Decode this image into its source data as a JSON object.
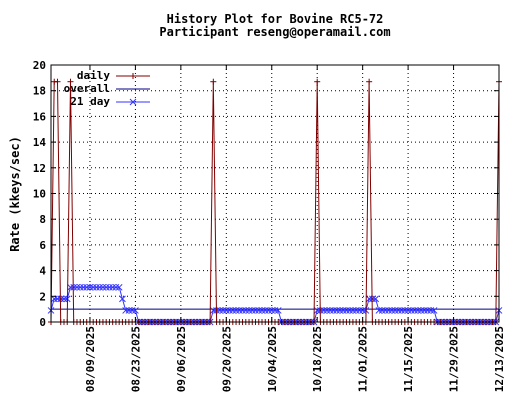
{
  "chart_data": {
    "type": "line",
    "title": "History Plot for Bovine RC5-72",
    "subtitle": "Participant reseng@operamail.com",
    "xlabel": "",
    "ylabel": "Rate (kkeys/sec)",
    "ylim": [
      0,
      20
    ],
    "yticks": [
      "0",
      "2",
      "4",
      "6",
      "8",
      "10",
      "12",
      "14",
      "16",
      "18",
      "20"
    ],
    "xlim": [
      "2025-07-28",
      "2025-12-13"
    ],
    "xticks": [
      "08/09/2025",
      "08/23/2025",
      "09/06/2025",
      "09/20/2025",
      "10/04/2025",
      "10/18/2025",
      "11/01/2025",
      "11/15/2025",
      "11/29/2025",
      "12/13/2025"
    ],
    "grid": true,
    "legend_position": "top-left",
    "series": [
      {
        "name": "daily",
        "color": "#800000",
        "marker": "plus",
        "points": [
          [
            "2025-07-28",
            0
          ],
          [
            "2025-07-29",
            18.7
          ],
          [
            "2025-07-30",
            18.7
          ],
          [
            "2025-07-31",
            0
          ],
          [
            "2025-08-01",
            0
          ],
          [
            "2025-08-02",
            0
          ],
          [
            "2025-08-03",
            18.7
          ],
          [
            "2025-08-04",
            0
          ],
          [
            "2025-08-05",
            0
          ],
          [
            "2025-08-06",
            0
          ],
          [
            "2025-08-07",
            0
          ],
          [
            "2025-08-08",
            0
          ],
          [
            "2025-08-09",
            0
          ],
          [
            "2025-08-10",
            0
          ],
          [
            "2025-08-11",
            0
          ],
          [
            "2025-08-12",
            0
          ],
          [
            "2025-08-13",
            0
          ],
          [
            "2025-08-14",
            0
          ],
          [
            "2025-08-15",
            0
          ],
          [
            "2025-08-16",
            0
          ],
          [
            "2025-08-17",
            0
          ],
          [
            "2025-08-18",
            0
          ],
          [
            "2025-08-19",
            0
          ],
          [
            "2025-08-20",
            0
          ],
          [
            "2025-08-21",
            0
          ],
          [
            "2025-08-22",
            0
          ],
          [
            "2025-08-23",
            0
          ],
          [
            "2025-08-24",
            0
          ],
          [
            "2025-08-25",
            0
          ],
          [
            "2025-08-26",
            0
          ],
          [
            "2025-08-27",
            0
          ],
          [
            "2025-08-28",
            0
          ],
          [
            "2025-08-29",
            0
          ],
          [
            "2025-08-30",
            0
          ],
          [
            "2025-08-31",
            0
          ],
          [
            "2025-09-01",
            0
          ],
          [
            "2025-09-02",
            0
          ],
          [
            "2025-09-03",
            0
          ],
          [
            "2025-09-04",
            0
          ],
          [
            "2025-09-05",
            0
          ],
          [
            "2025-09-06",
            0
          ],
          [
            "2025-09-07",
            0
          ],
          [
            "2025-09-08",
            0
          ],
          [
            "2025-09-09",
            0
          ],
          [
            "2025-09-10",
            0
          ],
          [
            "2025-09-11",
            0
          ],
          [
            "2025-09-12",
            0
          ],
          [
            "2025-09-13",
            0
          ],
          [
            "2025-09-14",
            0
          ],
          [
            "2025-09-15",
            0
          ],
          [
            "2025-09-16",
            18.7
          ],
          [
            "2025-09-17",
            0
          ],
          [
            "2025-09-18",
            0
          ],
          [
            "2025-09-19",
            0
          ],
          [
            "2025-09-20",
            0
          ],
          [
            "2025-09-21",
            0
          ],
          [
            "2025-09-22",
            0
          ],
          [
            "2025-09-23",
            0
          ],
          [
            "2025-09-24",
            0
          ],
          [
            "2025-09-25",
            0
          ],
          [
            "2025-09-26",
            0
          ],
          [
            "2025-09-27",
            0
          ],
          [
            "2025-09-28",
            0
          ],
          [
            "2025-09-29",
            0
          ],
          [
            "2025-09-30",
            0
          ],
          [
            "2025-10-01",
            0
          ],
          [
            "2025-10-02",
            0
          ],
          [
            "2025-10-03",
            0
          ],
          [
            "2025-10-04",
            0
          ],
          [
            "2025-10-05",
            0
          ],
          [
            "2025-10-06",
            0
          ],
          [
            "2025-10-07",
            0
          ],
          [
            "2025-10-08",
            0
          ],
          [
            "2025-10-09",
            0
          ],
          [
            "2025-10-10",
            0
          ],
          [
            "2025-10-11",
            0
          ],
          [
            "2025-10-12",
            0
          ],
          [
            "2025-10-13",
            0
          ],
          [
            "2025-10-14",
            0
          ],
          [
            "2025-10-15",
            0
          ],
          [
            "2025-10-16",
            0
          ],
          [
            "2025-10-17",
            0
          ],
          [
            "2025-10-18",
            18.7
          ],
          [
            "2025-10-19",
            0
          ],
          [
            "2025-10-20",
            0
          ],
          [
            "2025-10-21",
            0
          ],
          [
            "2025-10-22",
            0
          ],
          [
            "2025-10-23",
            0
          ],
          [
            "2025-10-24",
            0
          ],
          [
            "2025-10-25",
            0
          ],
          [
            "2025-10-26",
            0
          ],
          [
            "2025-10-27",
            0
          ],
          [
            "2025-10-28",
            0
          ],
          [
            "2025-10-29",
            0
          ],
          [
            "2025-10-30",
            0
          ],
          [
            "2025-10-31",
            0
          ],
          [
            "2025-11-01",
            0
          ],
          [
            "2025-11-02",
            0
          ],
          [
            "2025-11-03",
            18.7
          ],
          [
            "2025-11-04",
            0
          ],
          [
            "2025-11-05",
            0
          ],
          [
            "2025-11-06",
            0
          ],
          [
            "2025-11-07",
            0
          ],
          [
            "2025-11-08",
            0
          ],
          [
            "2025-11-09",
            0
          ],
          [
            "2025-11-10",
            0
          ],
          [
            "2025-11-11",
            0
          ],
          [
            "2025-11-12",
            0
          ],
          [
            "2025-11-13",
            0
          ],
          [
            "2025-11-14",
            0
          ],
          [
            "2025-11-15",
            0
          ],
          [
            "2025-11-16",
            0
          ],
          [
            "2025-11-17",
            0
          ],
          [
            "2025-11-18",
            0
          ],
          [
            "2025-11-19",
            0
          ],
          [
            "2025-11-20",
            0
          ],
          [
            "2025-11-21",
            0
          ],
          [
            "2025-11-22",
            0
          ],
          [
            "2025-11-23",
            0
          ],
          [
            "2025-11-24",
            0
          ],
          [
            "2025-11-25",
            0
          ],
          [
            "2025-11-26",
            0
          ],
          [
            "2025-11-27",
            0
          ],
          [
            "2025-11-28",
            0
          ],
          [
            "2025-11-29",
            0
          ],
          [
            "2025-11-30",
            0
          ],
          [
            "2025-12-01",
            0
          ],
          [
            "2025-12-02",
            0
          ],
          [
            "2025-12-03",
            0
          ],
          [
            "2025-12-04",
            0
          ],
          [
            "2025-12-05",
            0
          ],
          [
            "2025-12-06",
            0
          ],
          [
            "2025-12-07",
            0
          ],
          [
            "2025-12-08",
            0
          ],
          [
            "2025-12-09",
            0
          ],
          [
            "2025-12-10",
            0
          ],
          [
            "2025-12-11",
            0
          ],
          [
            "2025-12-12",
            0
          ],
          [
            "2025-12-13",
            18.7
          ]
        ]
      },
      {
        "name": "overall",
        "color": "#000080",
        "marker": "none",
        "points": [
          [
            "2025-07-28",
            1.0
          ],
          [
            "2025-12-13",
            1.0
          ]
        ]
      },
      {
        "name": "21 day",
        "color": "#3333ff",
        "marker": "x",
        "points": [
          [
            "2025-07-28",
            0.9
          ],
          [
            "2025-07-29",
            1.8
          ],
          [
            "2025-07-30",
            1.8
          ],
          [
            "2025-07-31",
            1.8
          ],
          [
            "2025-08-01",
            1.8
          ],
          [
            "2025-08-02",
            1.8
          ],
          [
            "2025-08-03",
            2.7
          ],
          [
            "2025-08-04",
            2.7
          ],
          [
            "2025-08-05",
            2.7
          ],
          [
            "2025-08-06",
            2.7
          ],
          [
            "2025-08-07",
            2.7
          ],
          [
            "2025-08-08",
            2.7
          ],
          [
            "2025-08-09",
            2.7
          ],
          [
            "2025-08-10",
            2.7
          ],
          [
            "2025-08-11",
            2.7
          ],
          [
            "2025-08-12",
            2.7
          ],
          [
            "2025-08-13",
            2.7
          ],
          [
            "2025-08-14",
            2.7
          ],
          [
            "2025-08-15",
            2.7
          ],
          [
            "2025-08-16",
            2.7
          ],
          [
            "2025-08-17",
            2.7
          ],
          [
            "2025-08-18",
            2.7
          ],
          [
            "2025-08-19",
            1.8
          ],
          [
            "2025-08-20",
            0.9
          ],
          [
            "2025-08-21",
            0.9
          ],
          [
            "2025-08-22",
            0.9
          ],
          [
            "2025-08-23",
            0.9
          ],
          [
            "2025-08-24",
            0.0
          ],
          [
            "2025-08-25",
            0.0
          ],
          [
            "2025-08-26",
            0.0
          ],
          [
            "2025-08-27",
            0.0
          ],
          [
            "2025-08-28",
            0.0
          ],
          [
            "2025-08-29",
            0.0
          ],
          [
            "2025-08-30",
            0.0
          ],
          [
            "2025-08-31",
            0.0
          ],
          [
            "2025-09-01",
            0.0
          ],
          [
            "2025-09-02",
            0.0
          ],
          [
            "2025-09-03",
            0.0
          ],
          [
            "2025-09-04",
            0.0
          ],
          [
            "2025-09-05",
            0.0
          ],
          [
            "2025-09-06",
            0.0
          ],
          [
            "2025-09-07",
            0.0
          ],
          [
            "2025-09-08",
            0.0
          ],
          [
            "2025-09-09",
            0.0
          ],
          [
            "2025-09-10",
            0.0
          ],
          [
            "2025-09-11",
            0.0
          ],
          [
            "2025-09-12",
            0.0
          ],
          [
            "2025-09-13",
            0.0
          ],
          [
            "2025-09-14",
            0.0
          ],
          [
            "2025-09-15",
            0.0
          ],
          [
            "2025-09-16",
            0.9
          ],
          [
            "2025-09-17",
            0.9
          ],
          [
            "2025-09-18",
            0.9
          ],
          [
            "2025-09-19",
            0.9
          ],
          [
            "2025-09-20",
            0.9
          ],
          [
            "2025-09-21",
            0.9
          ],
          [
            "2025-09-22",
            0.9
          ],
          [
            "2025-09-23",
            0.9
          ],
          [
            "2025-09-24",
            0.9
          ],
          [
            "2025-09-25",
            0.9
          ],
          [
            "2025-09-26",
            0.9
          ],
          [
            "2025-09-27",
            0.9
          ],
          [
            "2025-09-28",
            0.9
          ],
          [
            "2025-09-29",
            0.9
          ],
          [
            "2025-09-30",
            0.9
          ],
          [
            "2025-10-01",
            0.9
          ],
          [
            "2025-10-02",
            0.9
          ],
          [
            "2025-10-03",
            0.9
          ],
          [
            "2025-10-04",
            0.9
          ],
          [
            "2025-10-05",
            0.9
          ],
          [
            "2025-10-06",
            0.9
          ],
          [
            "2025-10-07",
            0.0
          ],
          [
            "2025-10-08",
            0.0
          ],
          [
            "2025-10-09",
            0.0
          ],
          [
            "2025-10-10",
            0.0
          ],
          [
            "2025-10-11",
            0.0
          ],
          [
            "2025-10-12",
            0.0
          ],
          [
            "2025-10-13",
            0.0
          ],
          [
            "2025-10-14",
            0.0
          ],
          [
            "2025-10-15",
            0.0
          ],
          [
            "2025-10-16",
            0.0
          ],
          [
            "2025-10-17",
            0.0
          ],
          [
            "2025-10-18",
            0.9
          ],
          [
            "2025-10-19",
            0.9
          ],
          [
            "2025-10-20",
            0.9
          ],
          [
            "2025-10-21",
            0.9
          ],
          [
            "2025-10-22",
            0.9
          ],
          [
            "2025-10-23",
            0.9
          ],
          [
            "2025-10-24",
            0.9
          ],
          [
            "2025-10-25",
            0.9
          ],
          [
            "2025-10-26",
            0.9
          ],
          [
            "2025-10-27",
            0.9
          ],
          [
            "2025-10-28",
            0.9
          ],
          [
            "2025-10-29",
            0.9
          ],
          [
            "2025-10-30",
            0.9
          ],
          [
            "2025-10-31",
            0.9
          ],
          [
            "2025-11-01",
            0.9
          ],
          [
            "2025-11-02",
            0.9
          ],
          [
            "2025-11-03",
            1.8
          ],
          [
            "2025-11-04",
            1.8
          ],
          [
            "2025-11-05",
            1.8
          ],
          [
            "2025-11-06",
            0.9
          ],
          [
            "2025-11-07",
            0.9
          ],
          [
            "2025-11-08",
            0.9
          ],
          [
            "2025-11-09",
            0.9
          ],
          [
            "2025-11-10",
            0.9
          ],
          [
            "2025-11-11",
            0.9
          ],
          [
            "2025-11-12",
            0.9
          ],
          [
            "2025-11-13",
            0.9
          ],
          [
            "2025-11-14",
            0.9
          ],
          [
            "2025-11-15",
            0.9
          ],
          [
            "2025-11-16",
            0.9
          ],
          [
            "2025-11-17",
            0.9
          ],
          [
            "2025-11-18",
            0.9
          ],
          [
            "2025-11-19",
            0.9
          ],
          [
            "2025-11-20",
            0.9
          ],
          [
            "2025-11-21",
            0.9
          ],
          [
            "2025-11-22",
            0.9
          ],
          [
            "2025-11-23",
            0.9
          ],
          [
            "2025-11-24",
            0.0
          ],
          [
            "2025-11-25",
            0.0
          ],
          [
            "2025-11-26",
            0.0
          ],
          [
            "2025-11-27",
            0.0
          ],
          [
            "2025-11-28",
            0.0
          ],
          [
            "2025-11-29",
            0.0
          ],
          [
            "2025-11-30",
            0.0
          ],
          [
            "2025-12-01",
            0.0
          ],
          [
            "2025-12-02",
            0.0
          ],
          [
            "2025-12-03",
            0.0
          ],
          [
            "2025-12-04",
            0.0
          ],
          [
            "2025-12-05",
            0.0
          ],
          [
            "2025-12-06",
            0.0
          ],
          [
            "2025-12-07",
            0.0
          ],
          [
            "2025-12-08",
            0.0
          ],
          [
            "2025-12-09",
            0.0
          ],
          [
            "2025-12-10",
            0.0
          ],
          [
            "2025-12-11",
            0.0
          ],
          [
            "2025-12-12",
            0.0
          ],
          [
            "2025-12-13",
            0.9
          ]
        ]
      }
    ]
  }
}
